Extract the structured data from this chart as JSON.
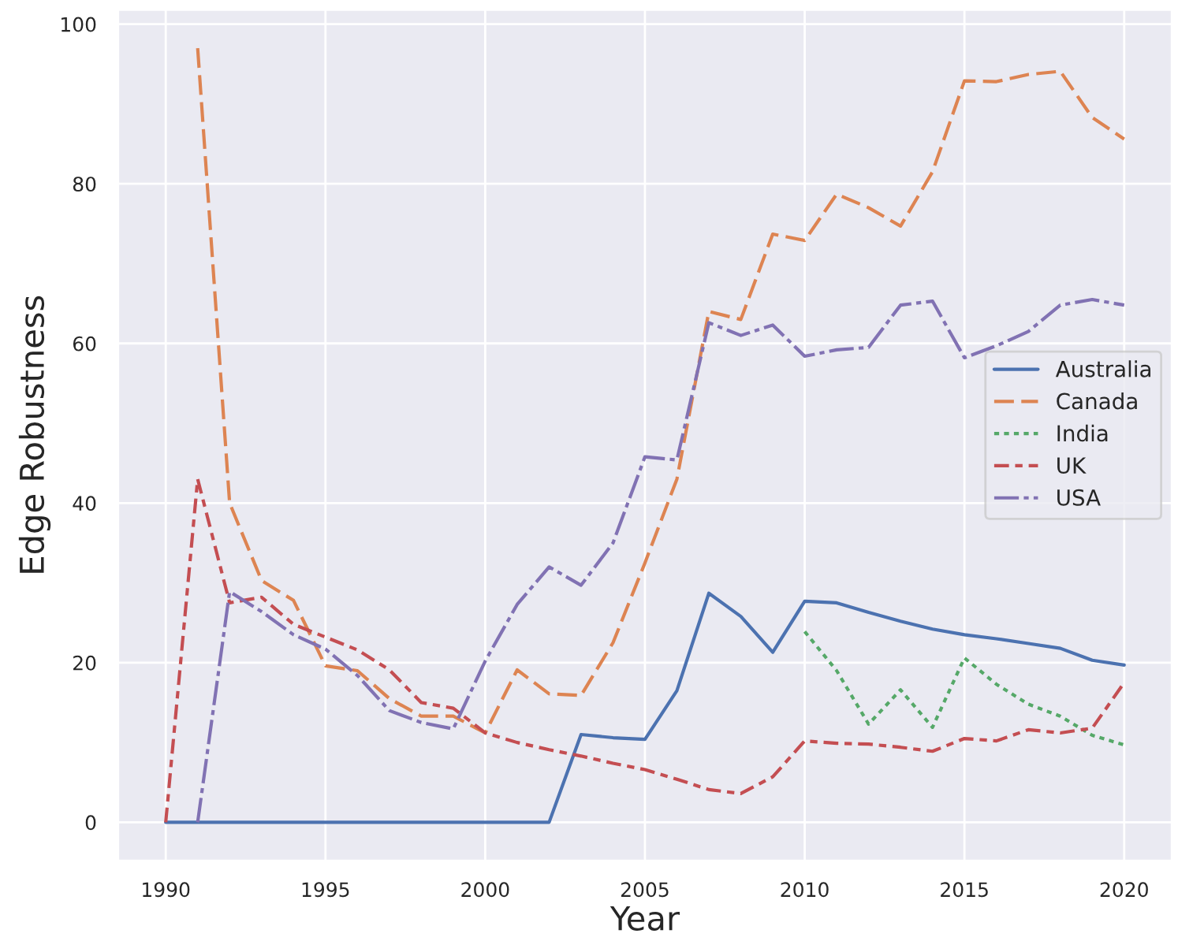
{
  "chart_data": {
    "type": "line",
    "xlabel": "Year",
    "ylabel": "Edge Robustness",
    "x": [
      1990,
      1991,
      1992,
      1993,
      1994,
      1995,
      1996,
      1997,
      1998,
      1999,
      2000,
      2001,
      2002,
      2003,
      2004,
      2005,
      2006,
      2007,
      2008,
      2009,
      2010,
      2011,
      2012,
      2013,
      2014,
      2015,
      2016,
      2017,
      2018,
      2019,
      2020
    ],
    "series": [
      {
        "name": "Australia",
        "color": "#4c72b0",
        "line_style": "solid",
        "values": [
          0,
          0,
          0,
          0,
          0,
          0,
          0,
          0,
          0,
          0,
          0,
          0,
          0,
          11,
          10.6,
          10.4,
          16.5,
          28.7,
          25.8,
          21.3,
          27.7,
          27.5,
          26.3,
          25.2,
          24.2,
          23.5,
          23,
          22.4,
          21.8,
          20.3,
          19.7
        ]
      },
      {
        "name": "Canada",
        "color": "#dd8452",
        "line_style": "dashed",
        "values": [
          null,
          97,
          40,
          30.3,
          27.8,
          19.6,
          19,
          15.5,
          13.3,
          13.3,
          11.2,
          19.1,
          16.1,
          15.9,
          22.5,
          32.5,
          43,
          64,
          63,
          73.7,
          72.9,
          78.7,
          77,
          74.7,
          81.5,
          92.9,
          92.8,
          93.7,
          94.1,
          88.3,
          85.6
        ]
      },
      {
        "name": "India",
        "color": "#55a868",
        "line_style": "dotted",
        "values": [
          null,
          null,
          null,
          null,
          null,
          null,
          null,
          null,
          null,
          null,
          null,
          null,
          null,
          null,
          null,
          null,
          null,
          null,
          null,
          null,
          23.9,
          19,
          12.3,
          16.6,
          11.9,
          20.6,
          17.3,
          14.8,
          13.3,
          10.9,
          9.7
        ]
      },
      {
        "name": "UK",
        "color": "#c44e52",
        "line_style": "dashdot",
        "values": [
          0,
          43,
          27.5,
          28.2,
          24.8,
          23.2,
          21.6,
          19.1,
          15,
          14.3,
          11.2,
          10,
          9.1,
          8.3,
          7.4,
          6.6,
          5.4,
          4.1,
          3.6,
          5.7,
          10.2,
          9.9,
          9.8,
          9.4,
          8.9,
          10.5,
          10.2,
          11.6,
          11.2,
          11.8,
          17.5
        ]
      },
      {
        "name": "USA",
        "color": "#8172b3",
        "line_style": "longdashdot",
        "values": [
          null,
          0,
          28.9,
          26.4,
          23.5,
          21.7,
          18.4,
          14,
          12.5,
          11.7,
          20.2,
          27.3,
          32,
          29.7,
          35,
          45.8,
          45.4,
          62.6,
          61,
          62.3,
          58.4,
          59.2,
          59.5,
          64.8,
          65.3,
          58.2,
          59.7,
          61.5,
          64.8,
          65.5,
          64.8
        ]
      }
    ],
    "xlim": [
      1988.5,
      2021.5
    ],
    "ylim": [
      -4.85,
      101.85
    ],
    "xticks": [
      1990,
      1995,
      2000,
      2005,
      2010,
      2015,
      2020
    ],
    "yticks": [
      0,
      20,
      40,
      60,
      80,
      100
    ],
    "grid": true,
    "legend": "center right"
  }
}
